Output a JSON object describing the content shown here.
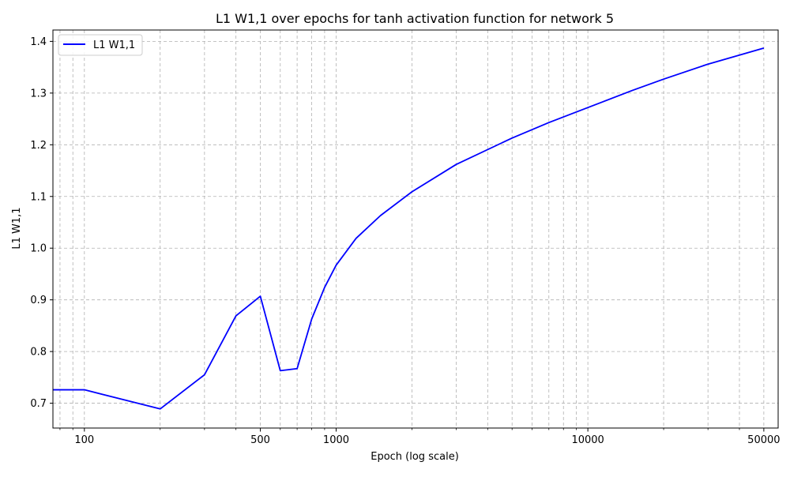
{
  "chart_data": {
    "type": "line",
    "title": "L1 W1,1 over epochs for tanh activation function for network 5",
    "xlabel": "Epoch (log scale)",
    "ylabel": "L1 W1,1",
    "x_scale": "log",
    "xlim": [
      75,
      57000
    ],
    "ylim": [
      0.652,
      1.422
    ],
    "x_ticks": [
      100,
      500,
      1000,
      10000,
      50000
    ],
    "x_tick_labels": [
      "100",
      "500",
      "1000",
      "10000",
      "50000"
    ],
    "y_ticks": [
      0.7,
      0.8,
      0.9,
      1.0,
      1.1,
      1.2,
      1.3,
      1.4
    ],
    "y_tick_labels": [
      "0.7",
      "0.8",
      "0.9",
      "1.0",
      "1.1",
      "1.2",
      "1.3",
      "1.4"
    ],
    "grid": true,
    "legend_position": "top-left",
    "colors": {
      "series": "#0000ff",
      "grid": "#b0b0b0",
      "axes": "#000000"
    },
    "series": [
      {
        "name": "L1 W1,1",
        "x": [
          75,
          100,
          200,
          300,
          400,
          500,
          600,
          700,
          800,
          900,
          1000,
          1200,
          1500,
          2000,
          3000,
          5000,
          7000,
          10000,
          15000,
          20000,
          30000,
          50000
        ],
        "values": [
          0.726,
          0.726,
          0.689,
          0.755,
          0.869,
          0.907,
          0.763,
          0.767,
          0.863,
          0.924,
          0.967,
          1.019,
          1.063,
          1.109,
          1.162,
          1.213,
          1.243,
          1.272,
          1.305,
          1.327,
          1.356,
          1.387
        ]
      }
    ]
  }
}
